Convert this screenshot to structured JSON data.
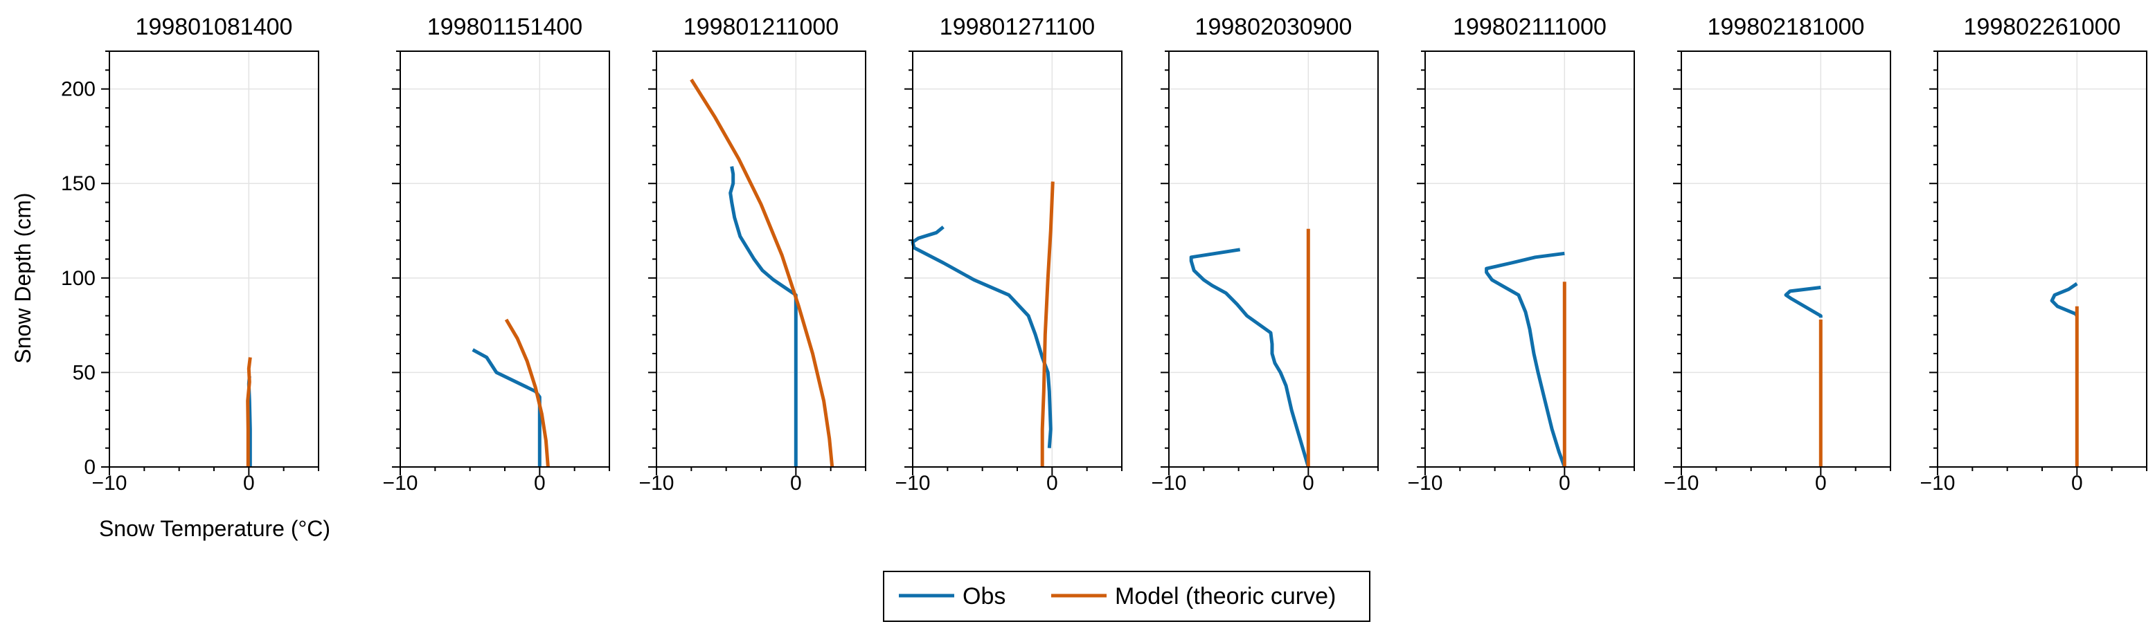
{
  "colors": {
    "obs": "#0f6fab",
    "model": "#cf5d0c",
    "grid": "#e3e3e3",
    "axes": "#000000"
  },
  "legend": {
    "obs_label": "Obs",
    "model_label": "Model (theoric curve)"
  },
  "chart_data": {
    "type": "line",
    "xlabel": "Snow Temperature (°C)",
    "ylabel": "Snow Depth (cm)",
    "xlim": [
      -10,
      5
    ],
    "ylim": [
      0,
      220
    ],
    "xticks": [
      -10,
      0
    ],
    "yticks": [
      0,
      50,
      100,
      150,
      200
    ],
    "grid": true,
    "legend_position": "bottom-center",
    "panels": [
      {
        "title": "199801081400",
        "series": [
          {
            "name": "Obs",
            "points": [
              [
                0.1,
                0
              ],
              [
                0.1,
                20
              ],
              [
                0.05,
                35
              ],
              [
                0.0,
                44
              ],
              [
                0.05,
                48
              ]
            ]
          },
          {
            "name": "Model (theoric curve)",
            "points": [
              [
                -0.05,
                0
              ],
              [
                -0.05,
                20
              ],
              [
                -0.08,
                35
              ],
              [
                0.05,
                45
              ],
              [
                0.0,
                52
              ],
              [
                0.1,
                58
              ]
            ]
          }
        ]
      },
      {
        "title": "199801151400",
        "series": [
          {
            "name": "Obs",
            "points": [
              [
                -4.8,
                62
              ],
              [
                -3.8,
                58
              ],
              [
                -3.1,
                50
              ],
              [
                -0.3,
                40
              ],
              [
                0.0,
                37
              ],
              [
                0.0,
                0
              ]
            ]
          },
          {
            "name": "Model (theoric curve)",
            "points": [
              [
                -2.4,
                78
              ],
              [
                -1.6,
                68
              ],
              [
                -0.9,
                56
              ],
              [
                -0.3,
                42
              ],
              [
                0.15,
                28
              ],
              [
                0.45,
                14
              ],
              [
                0.6,
                0
              ]
            ]
          }
        ]
      },
      {
        "title": "199801211000",
        "series": [
          {
            "name": "Obs",
            "points": [
              [
                -4.6,
                159
              ],
              [
                -4.5,
                155
              ],
              [
                -4.5,
                150
              ],
              [
                -4.7,
                145
              ],
              [
                -4.6,
                140
              ],
              [
                -4.4,
                132
              ],
              [
                -4.0,
                122
              ],
              [
                -3.0,
                110
              ],
              [
                -2.4,
                104
              ],
              [
                -1.6,
                99
              ],
              [
                -0.8,
                95
              ],
              [
                0.0,
                91
              ],
              [
                0.0,
                0
              ]
            ]
          },
          {
            "name": "Model (theoric curve)",
            "points": [
              [
                -7.5,
                205
              ],
              [
                -5.8,
                185
              ],
              [
                -4.1,
                163
              ],
              [
                -2.5,
                139
              ],
              [
                -1.0,
                112
              ],
              [
                0.2,
                85
              ],
              [
                1.2,
                60
              ],
              [
                2.0,
                35
              ],
              [
                2.4,
                15
              ],
              [
                2.6,
                0
              ]
            ]
          }
        ]
      },
      {
        "title": "199801271100",
        "series": [
          {
            "name": "Obs",
            "points": [
              [
                -7.8,
                127
              ],
              [
                -8.3,
                124
              ],
              [
                -9.6,
                121
              ],
              [
                -10.0,
                119
              ],
              [
                -9.9,
                116
              ],
              [
                -7.8,
                108
              ],
              [
                -5.6,
                99
              ],
              [
                -3.1,
                91
              ],
              [
                -1.7,
                80
              ],
              [
                -1.2,
                70
              ],
              [
                -0.7,
                58
              ],
              [
                -0.3,
                50
              ],
              [
                -0.2,
                40
              ],
              [
                -0.1,
                20
              ],
              [
                -0.2,
                10
              ]
            ]
          },
          {
            "name": "Model (theoric curve)",
            "points": [
              [
                0.05,
                151
              ],
              [
                -0.1,
                125
              ],
              [
                -0.3,
                100
              ],
              [
                -0.5,
                70
              ],
              [
                -0.6,
                40
              ],
              [
                -0.7,
                20
              ],
              [
                -0.7,
                0
              ]
            ]
          }
        ]
      },
      {
        "title": "199802030900",
        "series": [
          {
            "name": "Obs",
            "points": [
              [
                -4.9,
                115
              ],
              [
                -8.4,
                111
              ],
              [
                -8.4,
                109
              ],
              [
                -8.2,
                104
              ],
              [
                -7.5,
                99
              ],
              [
                -6.9,
                96
              ],
              [
                -5.9,
                92
              ],
              [
                -5.1,
                86
              ],
              [
                -4.4,
                80
              ],
              [
                -2.7,
                71
              ],
              [
                -2.6,
                65
              ],
              [
                -2.6,
                60
              ],
              [
                -2.4,
                55
              ],
              [
                -2.0,
                50
              ],
              [
                -1.6,
                43
              ],
              [
                -1.2,
                30
              ],
              [
                -0.8,
                20
              ],
              [
                0.0,
                0
              ]
            ]
          },
          {
            "name": "Model (theoric curve)",
            "points": [
              [
                0.0,
                126
              ],
              [
                0.0,
                0
              ]
            ]
          }
        ]
      },
      {
        "title": "199802111000",
        "series": [
          {
            "name": "Obs",
            "points": [
              [
                0.0,
                113
              ],
              [
                -2.1,
                111
              ],
              [
                -3.8,
                108
              ],
              [
                -5.6,
                105
              ],
              [
                -5.6,
                103
              ],
              [
                -5.2,
                99
              ],
              [
                -4.5,
                96
              ],
              [
                -3.3,
                91
              ],
              [
                -2.8,
                82
              ],
              [
                -2.5,
                73
              ],
              [
                -2.2,
                60
              ],
              [
                -1.9,
                50
              ],
              [
                -1.4,
                35
              ],
              [
                -0.9,
                20
              ],
              [
                -0.4,
                8
              ],
              [
                0.0,
                0
              ]
            ]
          },
          {
            "name": "Model (theoric curve)",
            "points": [
              [
                0.0,
                98
              ],
              [
                0.0,
                0
              ]
            ]
          }
        ]
      },
      {
        "title": "199802181000",
        "series": [
          {
            "name": "Obs",
            "points": [
              [
                0.0,
                95
              ],
              [
                -2.2,
                93
              ],
              [
                -2.5,
                91
              ],
              [
                -2.1,
                89
              ],
              [
                0.0,
                80
              ],
              [
                0.0,
                79
              ]
            ]
          },
          {
            "name": "Model (theoric curve)",
            "points": [
              [
                0.0,
                78
              ],
              [
                0.0,
                0
              ]
            ]
          }
        ]
      },
      {
        "title": "199802261000",
        "series": [
          {
            "name": "Obs",
            "points": [
              [
                0.0,
                97
              ],
              [
                -0.6,
                94
              ],
              [
                -1.6,
                91
              ],
              [
                -1.8,
                88
              ],
              [
                -1.4,
                85
              ],
              [
                -0.1,
                81
              ],
              [
                0.0,
                80
              ]
            ]
          },
          {
            "name": "Model (theoric curve)",
            "points": [
              [
                0.0,
                85
              ],
              [
                0.0,
                0
              ]
            ]
          }
        ]
      }
    ]
  }
}
